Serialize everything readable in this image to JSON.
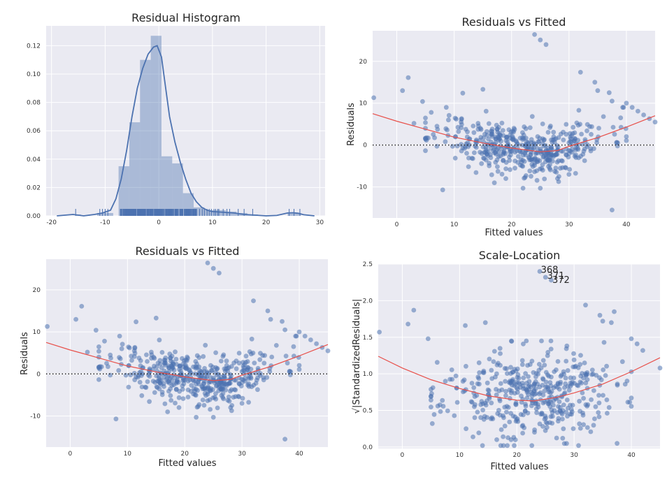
{
  "colors": {
    "series": "#4c72b0",
    "lowess": "#e8504a",
    "zero_line": "#222222",
    "background": "#eaeaf2"
  },
  "chart_data": [
    {
      "id": "hist",
      "type": "histogram",
      "title": "Residual Histogram",
      "xlabel": "",
      "ylabel": "",
      "xlim": [
        -21,
        31
      ],
      "ylim": [
        0,
        0.134
      ],
      "xticks": [
        -20,
        -10,
        0,
        10,
        20,
        30
      ],
      "yticks": [
        0.0,
        0.02,
        0.04,
        0.06,
        0.08,
        0.1,
        0.12
      ],
      "ytick_labels": [
        "0.00",
        "0.02",
        "0.04",
        "0.06",
        "0.08",
        "0.10",
        "0.12"
      ],
      "grid": true,
      "bins": [
        {
          "x0": -15.5,
          "x1": -14.5,
          "density": 0.001
        },
        {
          "x0": -11.5,
          "x1": -10.5,
          "density": 0.002
        },
        {
          "x0": -10.5,
          "x1": -9.5,
          "density": 0.002
        },
        {
          "x0": -9.5,
          "x1": -8.5,
          "density": 0.002
        },
        {
          "x0": -7.5,
          "x1": -5.5,
          "density": 0.035
        },
        {
          "x0": -5.5,
          "x1": -3.5,
          "density": 0.066
        },
        {
          "x0": -3.5,
          "x1": -1.5,
          "density": 0.11
        },
        {
          "x0": -1.5,
          "x1": 0.5,
          "density": 0.127
        },
        {
          "x0": 0.5,
          "x1": 2.5,
          "density": 0.042
        },
        {
          "x0": 2.5,
          "x1": 4.5,
          "density": 0.037
        },
        {
          "x0": 4.5,
          "x1": 6.5,
          "density": 0.016
        },
        {
          "x0": 6.5,
          "x1": 8.5,
          "density": 0.006
        },
        {
          "x0": 8.5,
          "x1": 10.5,
          "density": 0.004
        },
        {
          "x0": 10.5,
          "x1": 12.5,
          "density": 0.004
        },
        {
          "x0": 12.5,
          "x1": 14.5,
          "density": 0.003
        },
        {
          "x0": 14.5,
          "x1": 16.5,
          "density": 0.002
        },
        {
          "x0": 16.5,
          "x1": 18.5,
          "density": 0.001
        },
        {
          "x0": 24.0,
          "x1": 26.5,
          "density": 0.002
        }
      ],
      "kde": [
        [
          -19,
          0.0
        ],
        [
          -16,
          0.001
        ],
        [
          -14,
          0.0
        ],
        [
          -12,
          0.001
        ],
        [
          -10.5,
          0.002
        ],
        [
          -9,
          0.004
        ],
        [
          -8,
          0.012
        ],
        [
          -7,
          0.026
        ],
        [
          -6,
          0.046
        ],
        [
          -5,
          0.07
        ],
        [
          -4,
          0.09
        ],
        [
          -3,
          0.104
        ],
        [
          -2,
          0.114
        ],
        [
          -1,
          0.119
        ],
        [
          -0.3,
          0.12
        ],
        [
          0.5,
          0.112
        ],
        [
          1,
          0.098
        ],
        [
          2,
          0.07
        ],
        [
          3,
          0.052
        ],
        [
          4,
          0.038
        ],
        [
          5,
          0.026
        ],
        [
          6,
          0.016
        ],
        [
          7,
          0.01
        ],
        [
          8,
          0.006
        ],
        [
          9,
          0.004
        ],
        [
          10,
          0.003
        ],
        [
          12,
          0.0025
        ],
        [
          14,
          0.002
        ],
        [
          16,
          0.001
        ],
        [
          18,
          0.0005
        ],
        [
          20,
          0.0
        ],
        [
          22,
          0.0003
        ],
        [
          24,
          0.002
        ],
        [
          25,
          0.0022
        ],
        [
          26,
          0.0018
        ],
        [
          27,
          0.0008
        ],
        [
          29,
          0.0
        ]
      ],
      "rug_min": -7.2,
      "rug_max": 7.2,
      "rug_sparse": [
        -15.5,
        -11.0,
        -10.5,
        -10.0,
        -9.5,
        7.6,
        8.1,
        8.5,
        9.0,
        9.4,
        9.8,
        10.3,
        10.6,
        11.0,
        11.2,
        12.0,
        12.7,
        13.2,
        14.8,
        15.9,
        17.5,
        24.3,
        25.2,
        26.3
      ]
    },
    {
      "id": "rvf1",
      "type": "scatter",
      "title": "Residuals vs Fitted",
      "xlabel": "Fitted values",
      "ylabel": "Residuals",
      "xlim": [
        -4.2,
        45
      ],
      "ylim": [
        -17.4,
        27.3
      ],
      "xticks": [
        0,
        10,
        20,
        30,
        40
      ],
      "yticks": [
        -10,
        0,
        10,
        20
      ],
      "grid": true,
      "zero_line": 0,
      "lowess": [
        [
          -4.2,
          7.5
        ],
        [
          0,
          5.7
        ],
        [
          5,
          3.8
        ],
        [
          10,
          1.9
        ],
        [
          15,
          0.5
        ],
        [
          20,
          -0.7
        ],
        [
          25,
          -1.6
        ],
        [
          28,
          -1.3
        ],
        [
          30,
          -0.3
        ],
        [
          35,
          1.8
        ],
        [
          40,
          4.3
        ],
        [
          45,
          7.0
        ]
      ],
      "outliers": [
        [
          -4,
          11.3
        ],
        [
          1,
          13
        ],
        [
          2,
          16.1
        ],
        [
          4.5,
          10.4
        ],
        [
          11.5,
          12.4
        ],
        [
          15,
          13.3
        ],
        [
          24,
          26.4
        ],
        [
          25,
          25.1
        ],
        [
          26,
          24
        ],
        [
          32,
          17.4
        ],
        [
          34.5,
          15
        ],
        [
          35,
          13
        ],
        [
          37,
          12.5
        ],
        [
          37.5,
          10.5
        ],
        [
          37.5,
          -15.5
        ],
        [
          40,
          10
        ],
        [
          42,
          8.1
        ],
        [
          45,
          5.5
        ],
        [
          8,
          -10.7
        ],
        [
          22,
          -10.3
        ],
        [
          25,
          -10.3
        ],
        [
          28,
          -8
        ],
        [
          30,
          -7
        ],
        [
          19,
          -8
        ],
        [
          44,
          6.3
        ],
        [
          43,
          7.2
        ],
        [
          41,
          9
        ],
        [
          39,
          6.5
        ],
        [
          36,
          6.8
        ],
        [
          9,
          6
        ],
        [
          6,
          7.8
        ],
        [
          7,
          4.5
        ],
        [
          3,
          5.2
        ]
      ],
      "cloud": {
        "count": 460,
        "seed": 11,
        "x_mean": 22,
        "x_sd": 7.5,
        "x_min": 5,
        "x_max": 40,
        "y_sd": 3.0
      }
    },
    {
      "id": "rvf2",
      "type": "scatter",
      "title": "Residuals vs Fitted",
      "xlabel": "Fitted values",
      "ylabel": "Residuals",
      "xlim": [
        -4.2,
        45
      ],
      "ylim": [
        -17.4,
        27.3
      ],
      "xticks": [
        0,
        10,
        20,
        30,
        40
      ],
      "yticks": [
        -10,
        0,
        10,
        20
      ],
      "grid": true,
      "zero_line": 0,
      "lowess": [
        [
          -4.2,
          7.5
        ],
        [
          0,
          5.7
        ],
        [
          5,
          3.8
        ],
        [
          10,
          1.9
        ],
        [
          15,
          0.5
        ],
        [
          20,
          -0.7
        ],
        [
          25,
          -1.6
        ],
        [
          28,
          -1.3
        ],
        [
          30,
          -0.3
        ],
        [
          35,
          1.8
        ],
        [
          40,
          4.3
        ],
        [
          45,
          7.0
        ]
      ],
      "outliers": [
        [
          -4,
          11.3
        ],
        [
          1,
          13
        ],
        [
          2,
          16.1
        ],
        [
          4.5,
          10.4
        ],
        [
          11.5,
          12.4
        ],
        [
          15,
          13.3
        ],
        [
          24,
          26.4
        ],
        [
          25,
          25.1
        ],
        [
          26,
          24
        ],
        [
          32,
          17.4
        ],
        [
          34.5,
          15
        ],
        [
          35,
          13
        ],
        [
          37,
          12.5
        ],
        [
          37.5,
          10.5
        ],
        [
          37.5,
          -15.5
        ],
        [
          40,
          10
        ],
        [
          42,
          8.1
        ],
        [
          45,
          5.5
        ],
        [
          8,
          -10.7
        ],
        [
          22,
          -10.3
        ],
        [
          25,
          -10.3
        ],
        [
          28,
          -8
        ],
        [
          30,
          -7
        ],
        [
          19,
          -8
        ],
        [
          44,
          6.3
        ],
        [
          43,
          7.2
        ],
        [
          41,
          9
        ],
        [
          39,
          6.5
        ],
        [
          36,
          6.8
        ],
        [
          9,
          6
        ],
        [
          6,
          7.8
        ],
        [
          7,
          4.5
        ],
        [
          3,
          5.2
        ]
      ],
      "cloud": {
        "count": 460,
        "seed": 11,
        "x_mean": 22,
        "x_sd": 7.5,
        "x_min": 5,
        "x_max": 40,
        "y_sd": 3.0
      }
    },
    {
      "id": "scale",
      "type": "scatter",
      "title": "Scale-Location",
      "xlabel": "Fitted values",
      "ylabel": "√|StandardizedResiduals|",
      "xlim": [
        -4.2,
        45
      ],
      "ylim": [
        -0.02,
        2.5
      ],
      "xticks": [
        0,
        10,
        20,
        30,
        40
      ],
      "yticks": [
        0.0,
        0.5,
        1.0,
        1.5,
        2.0,
        2.5
      ],
      "ytick_labels": [
        "0.0",
        "0.5",
        "1.0",
        "1.5",
        "2.0",
        "2.5"
      ],
      "grid": true,
      "lowess": [
        [
          -4.2,
          1.24
        ],
        [
          0,
          1.08
        ],
        [
          5,
          0.92
        ],
        [
          10,
          0.8
        ],
        [
          15,
          0.7
        ],
        [
          20,
          0.64
        ],
        [
          23,
          0.63
        ],
        [
          27,
          0.68
        ],
        [
          30,
          0.74
        ],
        [
          35,
          0.86
        ],
        [
          40,
          1.03
        ],
        [
          45,
          1.22
        ]
      ],
      "outliers": [
        [
          -4,
          1.57
        ],
        [
          1,
          1.68
        ],
        [
          2,
          1.87
        ],
        [
          4.5,
          1.48
        ],
        [
          11,
          1.66
        ],
        [
          14.5,
          1.7
        ],
        [
          24,
          2.4
        ],
        [
          25,
          2.32
        ],
        [
          26,
          2.28
        ],
        [
          32,
          1.94
        ],
        [
          34.5,
          1.8
        ],
        [
          35,
          1.72
        ],
        [
          36.5,
          1.7
        ],
        [
          37,
          1.85
        ],
        [
          40,
          1.48
        ],
        [
          41,
          1.41
        ],
        [
          42,
          1.32
        ],
        [
          45,
          1.08
        ],
        [
          37.5,
          0.05
        ],
        [
          28,
          0.12
        ],
        [
          19,
          0.1
        ]
      ],
      "annotations": [
        {
          "label": "368",
          "x": 24.2,
          "y": 2.38
        },
        {
          "label": "371",
          "x": 25.3,
          "y": 2.3
        },
        {
          "label": "372",
          "x": 26.2,
          "y": 2.24
        }
      ],
      "cloud": {
        "count": 440,
        "seed": 23,
        "x_mean": 22,
        "x_sd": 7.5,
        "x_min": 5,
        "x_max": 40,
        "y_mean": 0.72,
        "y_sd": 0.3,
        "y_min": 0.02,
        "y_max": 1.45
      }
    }
  ]
}
